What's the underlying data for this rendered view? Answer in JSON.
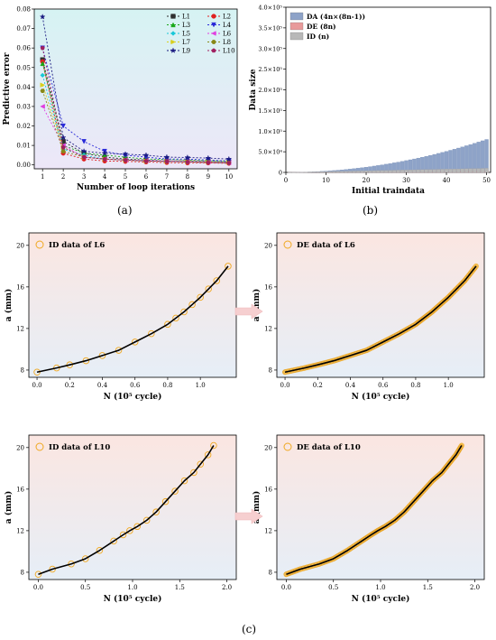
{
  "labels": {
    "a": "(a)",
    "b": "(b)",
    "c": "(c)"
  },
  "chart_data": [
    {
      "id": "a",
      "type": "line",
      "xlabel": "Number of loop iterations",
      "ylabel": "Predictive error",
      "xlim": [
        0.6,
        10.4
      ],
      "ylim": [
        -0.002,
        0.08
      ],
      "xticks": [
        1,
        2,
        3,
        4,
        5,
        6,
        7,
        8,
        9,
        10
      ],
      "yticks": [
        0.0,
        0.01,
        0.02,
        0.03,
        0.04,
        0.05,
        0.06,
        0.07,
        0.08
      ],
      "ytick_labels": [
        "0.00",
        "0.01",
        "0.02",
        "0.03",
        "0.04",
        "0.05",
        "0.06",
        "0.07",
        "0.08"
      ],
      "legend_position": "top-right",
      "x": [
        1,
        2,
        3,
        4,
        5,
        6,
        7,
        8,
        9,
        10
      ],
      "series": [
        {
          "name": "L1",
          "color": "#2f2f2f",
          "marker": "square",
          "values": [
            0.054,
            0.012,
            0.006,
            0.004,
            0.003,
            0.0025,
            0.002,
            0.002,
            0.0018,
            0.0015
          ]
        },
        {
          "name": "L2",
          "color": "#e02020",
          "marker": "circle",
          "values": [
            0.053,
            0.006,
            0.003,
            0.002,
            0.0018,
            0.0015,
            0.0012,
            0.001,
            0.001,
            0.0008
          ]
        },
        {
          "name": "L3",
          "color": "#18a818",
          "marker": "triangle-up",
          "values": [
            0.052,
            0.01,
            0.006,
            0.005,
            0.004,
            0.003,
            0.0028,
            0.0025,
            0.0022,
            0.002
          ]
        },
        {
          "name": "L4",
          "color": "#2828d8",
          "marker": "triangle-down",
          "values": [
            0.06,
            0.02,
            0.012,
            0.007,
            0.005,
            0.004,
            0.003,
            0.003,
            0.0025,
            0.002
          ]
        },
        {
          "name": "L5",
          "color": "#18c8d8",
          "marker": "diamond",
          "values": [
            0.046,
            0.008,
            0.005,
            0.003,
            0.0025,
            0.002,
            0.0018,
            0.0015,
            0.0013,
            0.001
          ]
        },
        {
          "name": "L6",
          "color": "#e040e0",
          "marker": "triangle-left",
          "values": [
            0.03,
            0.01,
            0.004,
            0.003,
            0.0025,
            0.0022,
            0.002,
            0.0018,
            0.0015,
            0.0012
          ]
        },
        {
          "name": "L7",
          "color": "#d8d020",
          "marker": "triangle-right",
          "values": [
            0.041,
            0.009,
            0.004,
            0.003,
            0.0025,
            0.002,
            0.0018,
            0.0016,
            0.0014,
            0.0012
          ]
        },
        {
          "name": "L8",
          "color": "#888818",
          "marker": "hexagon",
          "values": [
            0.038,
            0.007,
            0.004,
            0.003,
            0.0025,
            0.002,
            0.0018,
            0.0016,
            0.0014,
            0.0012
          ]
        },
        {
          "name": "L9",
          "color": "#1a1a80",
          "marker": "star",
          "values": [
            0.076,
            0.014,
            0.007,
            0.006,
            0.0055,
            0.005,
            0.004,
            0.0038,
            0.0035,
            0.003
          ]
        },
        {
          "name": "L10",
          "color": "#a02060",
          "marker": "pentagon",
          "values": [
            0.06,
            0.009,
            0.004,
            0.003,
            0.0025,
            0.002,
            0.0018,
            0.0015,
            0.0012,
            0.001
          ]
        }
      ]
    },
    {
      "id": "b",
      "type": "bar",
      "xlabel": "Initial traindata",
      "ylabel": "Data size",
      "xlim": [
        0,
        51
      ],
      "ylim": [
        0,
        400000
      ],
      "xticks": [
        0,
        10,
        20,
        30,
        40,
        50
      ],
      "yticks": [
        0,
        50000,
        100000,
        150000,
        200000,
        250000,
        300000,
        350000,
        400000
      ],
      "ytick_labels": [
        "0",
        "5.0×10⁴",
        "1.0×10⁵",
        "1.5×10⁵",
        "2.0×10⁵",
        "2.5×10⁵",
        "3.0×10⁵",
        "3.5×10⁵",
        "4.0×10⁵"
      ],
      "n_range": [
        1,
        50
      ],
      "legend_position": "top-left",
      "series": [
        {
          "name": "DA (4n×(8n-1))",
          "color": "#8ea3c8",
          "formula": "4n(8n-1)"
        },
        {
          "name": "DE (8n)",
          "color": "#e89a9a",
          "formula": "8n"
        },
        {
          "name": "ID  (n)",
          "color": "#b8b8b8",
          "formula": "n"
        }
      ]
    },
    {
      "id": "c1",
      "type": "scatter",
      "legend": "ID data of L6",
      "marker_style": "sparse-circles",
      "xlabel": "N (10⁵ cycle)",
      "ylabel": "a (mm)",
      "xlim": [
        -0.05,
        1.22
      ],
      "ylim": [
        7.3,
        21.2
      ],
      "xticks": [
        0.0,
        0.2,
        0.4,
        0.6,
        0.8,
        1.0
      ],
      "yticks": [
        8,
        12,
        16,
        20
      ],
      "x": [
        0.0,
        0.12,
        0.2,
        0.3,
        0.4,
        0.5,
        0.6,
        0.7,
        0.8,
        0.85,
        0.9,
        0.95,
        1.0,
        1.05,
        1.1,
        1.17
      ],
      "y": [
        7.8,
        8.2,
        8.5,
        8.9,
        9.4,
        9.9,
        10.7,
        11.5,
        12.4,
        13.0,
        13.6,
        14.3,
        15.0,
        15.8,
        16.6,
        18.0
      ]
    },
    {
      "id": "c2",
      "type": "scatter",
      "legend": "DE data of L6",
      "marker_style": "dense-circles",
      "xlabel": "N (10⁵ cycle)",
      "ylabel": "a (mm)",
      "xlim": [
        -0.05,
        1.22
      ],
      "ylim": [
        7.3,
        21.2
      ],
      "xticks": [
        0.0,
        0.2,
        0.4,
        0.6,
        0.8,
        1.0
      ],
      "yticks": [
        8,
        12,
        16,
        20
      ],
      "x": [
        0.0,
        0.12,
        0.2,
        0.3,
        0.4,
        0.5,
        0.6,
        0.7,
        0.8,
        0.85,
        0.9,
        0.95,
        1.0,
        1.05,
        1.1,
        1.17
      ],
      "y": [
        7.8,
        8.2,
        8.5,
        8.9,
        9.4,
        9.9,
        10.7,
        11.5,
        12.4,
        13.0,
        13.6,
        14.3,
        15.0,
        15.8,
        16.6,
        18.0
      ]
    },
    {
      "id": "c3",
      "type": "scatter",
      "legend": "ID data of L10",
      "marker_style": "sparse-circles",
      "xlabel": "N (10⁵ cycle)",
      "ylabel": "a (mm)",
      "xlim": [
        -0.1,
        2.1
      ],
      "ylim": [
        7.3,
        21.2
      ],
      "xticks": [
        0.0,
        0.5,
        1.0,
        1.5,
        2.0
      ],
      "yticks": [
        8,
        12,
        16,
        20
      ],
      "x": [
        0.0,
        0.15,
        0.35,
        0.5,
        0.65,
        0.8,
        0.9,
        0.97,
        1.05,
        1.15,
        1.25,
        1.35,
        1.45,
        1.55,
        1.65,
        1.72,
        1.8,
        1.86
      ],
      "y": [
        7.8,
        8.3,
        8.8,
        9.3,
        10.1,
        11.0,
        11.6,
        12.0,
        12.4,
        13.0,
        13.8,
        14.8,
        15.8,
        16.8,
        17.6,
        18.4,
        19.3,
        20.2
      ]
    },
    {
      "id": "c4",
      "type": "scatter",
      "legend": "DE data of L10",
      "marker_style": "dense-circles",
      "xlabel": "N (10⁵ cycle)",
      "ylabel": "a (mm)",
      "xlim": [
        -0.1,
        2.1
      ],
      "ylim": [
        7.3,
        21.2
      ],
      "xticks": [
        0.0,
        0.5,
        1.0,
        1.5,
        2.0
      ],
      "yticks": [
        8,
        12,
        16,
        20
      ],
      "x": [
        0.0,
        0.15,
        0.35,
        0.5,
        0.65,
        0.8,
        0.9,
        0.97,
        1.05,
        1.15,
        1.25,
        1.35,
        1.45,
        1.55,
        1.65,
        1.72,
        1.8,
        1.86
      ],
      "y": [
        7.8,
        8.3,
        8.8,
        9.3,
        10.1,
        11.0,
        11.6,
        12.0,
        12.4,
        13.0,
        13.8,
        14.8,
        15.8,
        16.8,
        17.6,
        18.4,
        19.3,
        20.2
      ]
    }
  ]
}
